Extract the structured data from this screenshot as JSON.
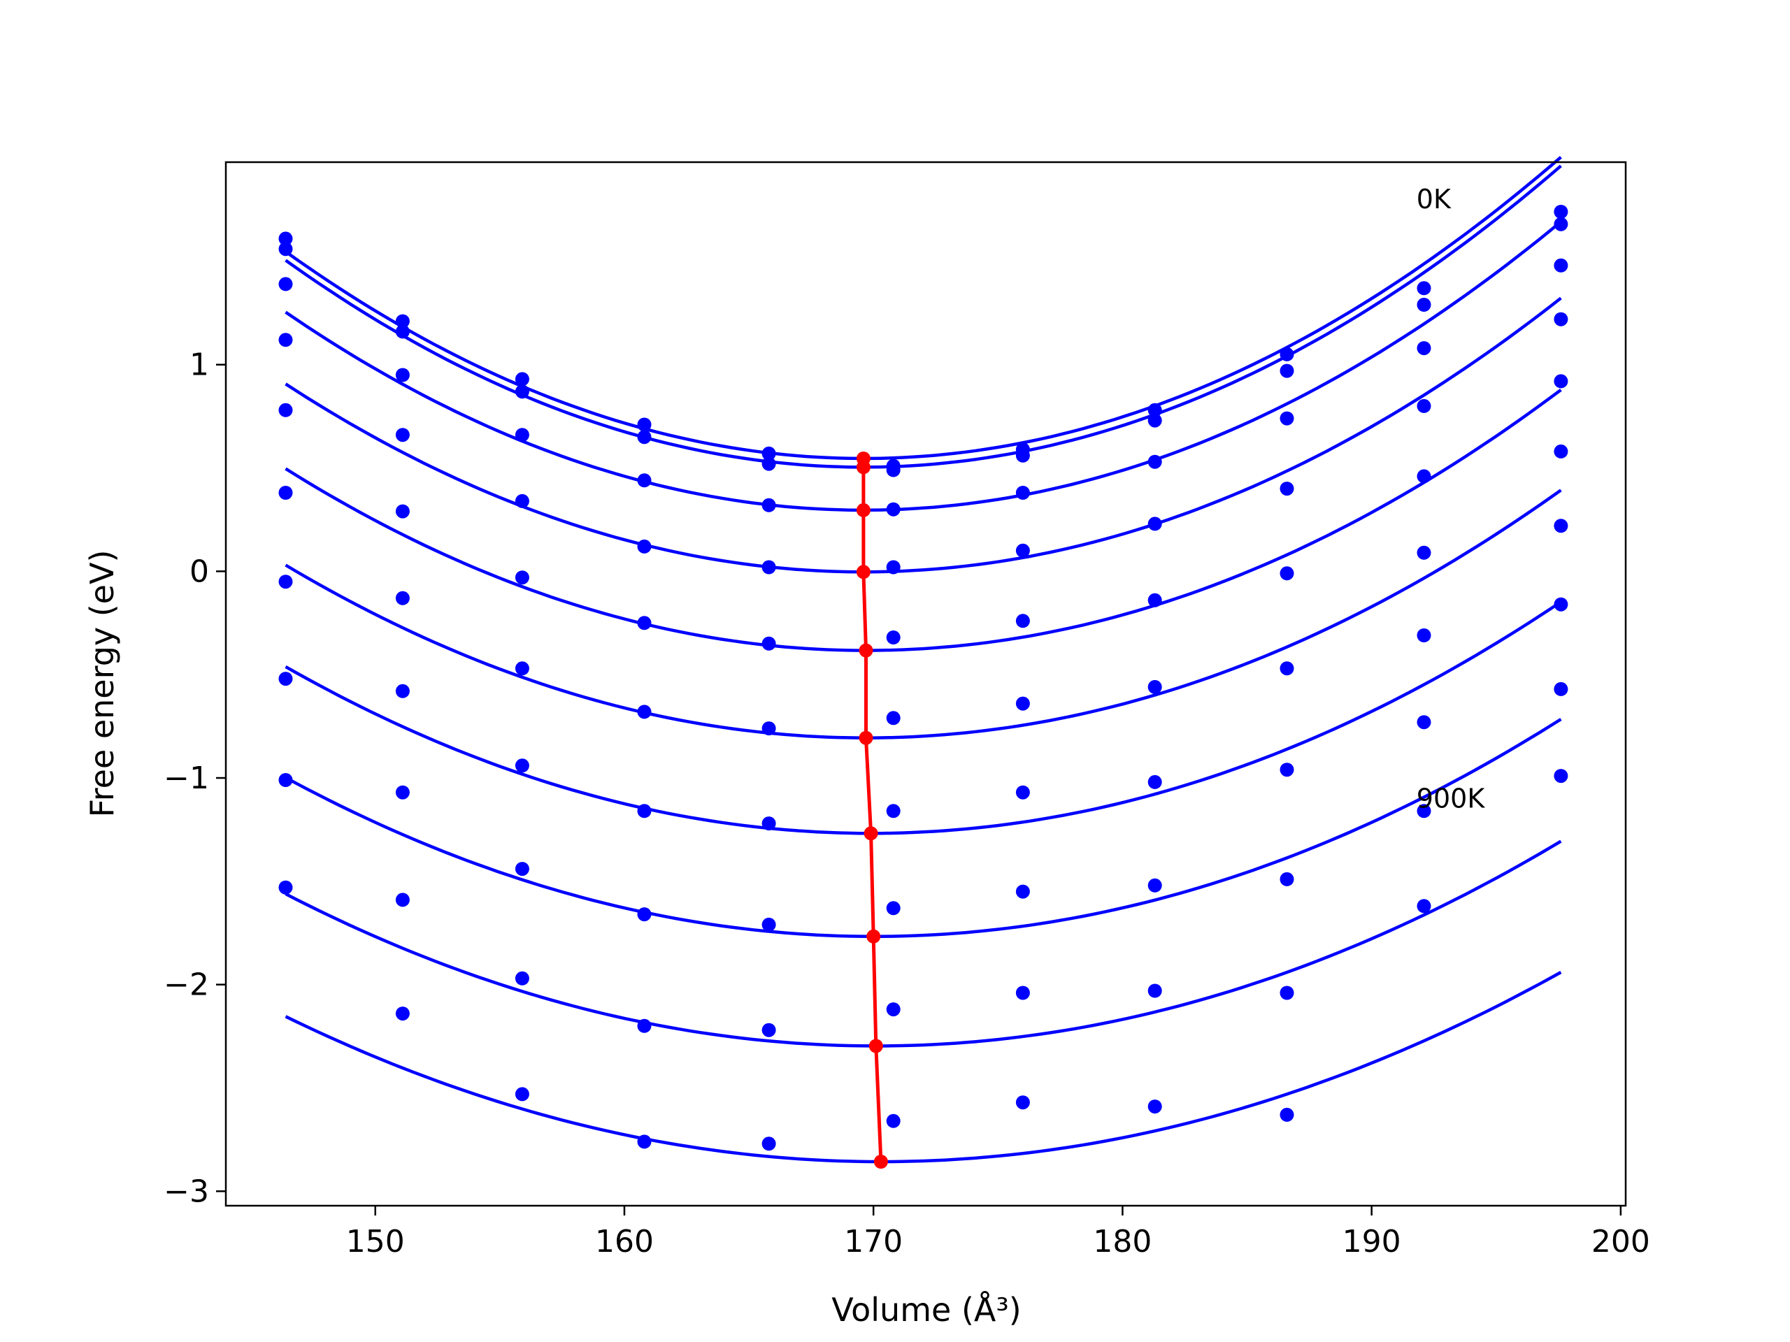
{
  "chart_data": {
    "type": "scatter",
    "title": "",
    "xlabel": "Volume (Å³)",
    "ylabel": "Free energy (eV)",
    "xlim": [
      144,
      200.2
    ],
    "ylim": [
      -3.07,
      1.98
    ],
    "x_ticks": [
      150,
      160,
      170,
      180,
      190,
      200
    ],
    "y_ticks": [
      -3,
      -2,
      -1,
      0,
      1
    ],
    "x_tick_labels": [
      "150",
      "160",
      "170",
      "180",
      "190",
      "200"
    ],
    "y_tick_labels": [
      "−3",
      "−2",
      "−1",
      "0",
      "1"
    ],
    "grid": false,
    "legend": null,
    "annotations": [
      {
        "text": "0K",
        "x": 191.8,
        "y": 1.8
      },
      {
        "text": "900K",
        "x": 191.8,
        "y": -1.1
      }
    ],
    "colors": {
      "points": "#0000ff",
      "fit": "#0000ff",
      "minima": "#ff0000"
    },
    "volumes": [
      146.4,
      151.1,
      155.9,
      160.8,
      165.8,
      170.8,
      176.0,
      181.3,
      186.6,
      192.1,
      197.6
    ],
    "series": [
      {
        "temperature_index": 0,
        "points": [
          1.61,
          1.21,
          0.93,
          0.71,
          0.57,
          0.51,
          0.59,
          0.78,
          1.05,
          1.37,
          1.74
        ],
        "fit_coeffs": [
          0.546,
          169.6,
          0.00186
        ]
      },
      {
        "temperature_index": 1,
        "points": [
          1.56,
          1.16,
          0.87,
          0.65,
          0.52,
          0.49,
          0.56,
          0.73,
          0.97,
          1.29,
          1.68
        ],
        "fit_coeffs": [
          0.504,
          169.6,
          0.00186
        ]
      },
      {
        "temperature_index": 2,
        "points": [
          1.39,
          0.95,
          0.66,
          0.44,
          0.32,
          0.3,
          0.38,
          0.53,
          0.74,
          1.08,
          1.48
        ],
        "fit_coeffs": [
          0.296,
          169.6,
          0.00178
        ]
      },
      {
        "temperature_index": 3,
        "points": [
          1.12,
          0.66,
          0.34,
          0.12,
          0.02,
          0.02,
          0.1,
          0.23,
          0.4,
          0.8,
          1.22
        ],
        "fit_coeffs": [
          -0.003,
          169.6,
          0.00169
        ]
      },
      {
        "temperature_index": 4,
        "points": [
          0.78,
          0.29,
          -0.03,
          -0.25,
          -0.35,
          -0.32,
          -0.24,
          -0.14,
          -0.01,
          0.46,
          0.92
        ],
        "fit_coeffs": [
          -0.383,
          169.7,
          0.00162
        ]
      },
      {
        "temperature_index": 5,
        "points": [
          0.38,
          -0.13,
          -0.47,
          -0.68,
          -0.76,
          -0.71,
          -0.64,
          -0.56,
          -0.47,
          0.09,
          0.58
        ],
        "fit_coeffs": [
          -0.806,
          169.7,
          0.00154
        ]
      },
      {
        "temperature_index": 6,
        "points": [
          -0.05,
          -0.58,
          -0.94,
          -1.16,
          -1.22,
          -1.16,
          -1.07,
          -1.02,
          -0.96,
          -0.31,
          0.22
        ],
        "fit_coeffs": [
          -1.268,
          169.9,
          0.00146
        ]
      },
      {
        "temperature_index": 7,
        "points": [
          -0.52,
          -1.07,
          -1.44,
          -1.66,
          -1.71,
          -1.63,
          -1.55,
          -1.52,
          -1.49,
          -0.73,
          -0.16
        ],
        "fit_coeffs": [
          -1.767,
          170.0,
          0.00138
        ]
      },
      {
        "temperature_index": 8,
        "points": [
          -1.01,
          -1.59,
          -1.97,
          -2.2,
          -2.22,
          -2.12,
          -2.04,
          -2.03,
          -2.04,
          -1.16,
          -0.57
        ],
        "fit_coeffs": [
          -2.297,
          170.1,
          0.00131
        ]
      },
      {
        "temperature_index": 9,
        "points": [
          -1.53,
          -2.14,
          -2.53,
          -2.76,
          -2.77,
          -2.66,
          -2.57,
          -2.59,
          -2.63,
          -1.62,
          -0.99
        ],
        "fit_coeffs": [
          -2.857,
          170.3,
          0.00123
        ]
      }
    ],
    "minima": {
      "x": [
        169.6,
        169.6,
        169.6,
        169.6,
        169.7,
        169.7,
        169.9,
        170.0,
        170.1,
        170.3
      ],
      "y": [
        0.546,
        0.504,
        0.296,
        -0.003,
        -0.383,
        -0.806,
        -1.268,
        -1.767,
        -2.297,
        -2.857
      ]
    }
  }
}
